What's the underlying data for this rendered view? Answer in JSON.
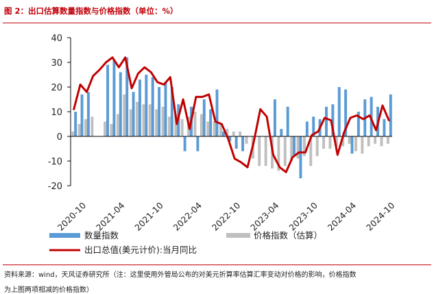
{
  "title": "图 2：出口估算数量指数与价格指数（单位：%）",
  "source_line1": "资料来源：wind，天风证券研究所（注：这里使用外管局公布的对美元折算率估算汇率变动对价格的影响，价格指数",
  "source_line2": "为上图两项相减的价格指数）",
  "colors": {
    "quantity": "#5b9bd5",
    "price": "#bfbfbf",
    "export": "#c00000",
    "axis": "#000000"
  },
  "chart_data": {
    "type": "bar+line",
    "ylim": [
      -20,
      40
    ],
    "yticks": [
      40,
      30,
      20,
      10,
      0,
      -10,
      -20
    ],
    "xtick_labels": [
      "2020-10",
      "2021-04",
      "2021-10",
      "2022-04",
      "2022-10",
      "2023-04",
      "2023-10",
      "2024-04",
      "2024-10"
    ],
    "xtick_index": [
      0,
      6,
      12,
      18,
      24,
      30,
      36,
      42,
      48
    ],
    "legend": {
      "quantity": "数量指数",
      "price": "价格指数（估算）",
      "export": "出口总值(美元计价):当月同比"
    },
    "categories": [
      "2020-10",
      "2020-11",
      "2020-12",
      "2021-01",
      "2021-02",
      "2021-03",
      "2021-04",
      "2021-05",
      "2021-06",
      "2021-07",
      "2021-08",
      "2021-09",
      "2021-10",
      "2021-11",
      "2021-12",
      "2022-01",
      "2022-02",
      "2022-03",
      "2022-04",
      "2022-05",
      "2022-06",
      "2022-07",
      "2022-08",
      "2022-09",
      "2022-10",
      "2022-11",
      "2022-12",
      "2023-01",
      "2023-02",
      "2023-03",
      "2023-04",
      "2023-05",
      "2023-06",
      "2023-07",
      "2023-08",
      "2023-09",
      "2023-10",
      "2023-11",
      "2023-12",
      "2024-01",
      "2024-02",
      "2024-03",
      "2024-04",
      "2024-05",
      "2024-06",
      "2024-07",
      "2024-08",
      "2024-09",
      "2024-10",
      "2024-11"
    ],
    "series": [
      {
        "name": "数量指数",
        "kind": "bar",
        "values": [
          10,
          17,
          18,
          null,
          null,
          29,
          31,
          26,
          32,
          18,
          23,
          25,
          24,
          20,
          22,
          20,
          13,
          -6,
          12,
          -6,
          15,
          11,
          19,
          2,
          -2,
          -5,
          -6,
          null,
          null,
          null,
          0,
          15,
          3,
          12,
          -8,
          -17,
          6,
          8,
          7,
          12,
          13,
          20,
          19,
          -7,
          10,
          15,
          16,
          12,
          7,
          17
        ]
      },
      {
        "name": "价格指数（估算）",
        "kind": "bar",
        "values": [
          2,
          5,
          7,
          8,
          null,
          6,
          5,
          9,
          17,
          11,
          14,
          13,
          13,
          11,
          12,
          8,
          9,
          7,
          8,
          10,
          9,
          6,
          6,
          5,
          3,
          2,
          2,
          -3,
          -9,
          -12,
          -12,
          -13,
          -14,
          -12,
          -10,
          -9,
          -8,
          -12,
          -8,
          -5,
          -5,
          -4,
          -4,
          -3,
          -6,
          -7,
          -4,
          -3,
          -4,
          -3
        ]
      },
      {
        "name": "出口总值(美元计价):当月同比",
        "kind": "line",
        "values": [
          11,
          21,
          18,
          24.5,
          27,
          30,
          32,
          28,
          32,
          19.5,
          25.5,
          28,
          26,
          22,
          21,
          24,
          5,
          15,
          3,
          16,
          16,
          17,
          6,
          5,
          -1,
          -9,
          -10.5,
          -12.5,
          -2,
          11,
          8,
          -7.5,
          -12.5,
          -14.5,
          -8.5,
          -6.5,
          -6.5,
          0.5,
          2,
          7.5,
          6.5,
          -7.5,
          1.5,
          7.5,
          8.5,
          7,
          8.5,
          2.5,
          12.5,
          6.5
        ]
      }
    ]
  }
}
